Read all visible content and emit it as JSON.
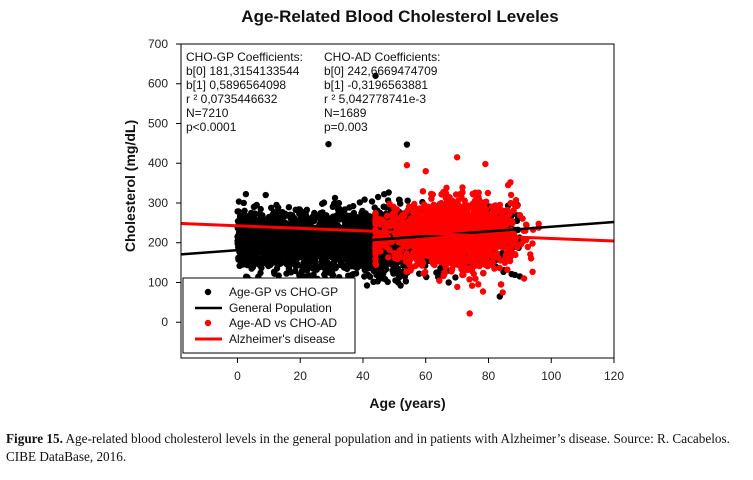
{
  "chart_data": {
    "type": "scatter",
    "title": "Age-Related Blood Cholesterol Leveles",
    "xlabel": "Age (years)",
    "ylabel": "Cholesterol (mg/dL)",
    "xlim": [
      -18,
      120
    ],
    "ylim": [
      -90,
      700
    ],
    "xticks": [
      0,
      20,
      40,
      60,
      80,
      100,
      120
    ],
    "yticks": [
      0,
      100,
      200,
      300,
      400,
      500,
      600,
      700
    ],
    "grid": false,
    "legend_position": "bottom-left",
    "series": [
      {
        "name": "Age-GP vs CHO-GP",
        "kind": "points",
        "color": "#000000",
        "n": 7210,
        "age_range": [
          0,
          90
        ],
        "cholesterol_center": 205,
        "cholesterol_spread": 45,
        "notable_points": [
          [
            29,
            448
          ],
          [
            44,
            620
          ],
          [
            54,
            447
          ],
          [
            9,
            320
          ],
          [
            2,
            300
          ],
          [
            27,
            298
          ],
          [
            84,
            95
          ]
        ]
      },
      {
        "name": "General Population",
        "kind": "regression_line",
        "color": "#000000",
        "intercept": 181.3154133544,
        "slope": 0.5896564098
      },
      {
        "name": "Age-AD vs CHO-AD",
        "kind": "points",
        "color": "#ff0000",
        "n": 1689,
        "age_range": [
          44,
          96
        ],
        "cholesterol_center": 222,
        "cholesterol_spread": 42,
        "notable_points": [
          [
            74,
            22
          ],
          [
            70,
            415
          ],
          [
            54,
            395
          ],
          [
            79,
            398
          ],
          [
            60,
            380
          ],
          [
            87,
            352
          ],
          [
            92,
            207
          ]
        ]
      },
      {
        "name": "Alzheimer's disease",
        "kind": "regression_line",
        "color": "#ff0000",
        "intercept": 242.6669474709,
        "slope": -0.3196563881
      }
    ],
    "annotations": {
      "gp": {
        "header": "CHO-GP  Coefficients:",
        "b0": "b[0]  181,3154133544",
        "b1": "b[1]  0,5896564098",
        "r2": "r ²  0,0735446632",
        "n": "N=7210",
        "p": "p<0.0001"
      },
      "ad": {
        "header": "CHO-AD  Coefficients:",
        "b0": "b[0]  242,6669474709",
        "b1": "b[1]  -0,3196563881",
        "r2": "r ²  5,042778741e-3",
        "n": "N=1689",
        "p": "p=0.003"
      }
    }
  },
  "caption": {
    "label": "Figure 15.",
    "text": " Age-related blood cholesterol levels in the general population and in patients with Alzheimer’s disease. Source: R. Cacabelos. CIBE DataBase, 2016."
  }
}
